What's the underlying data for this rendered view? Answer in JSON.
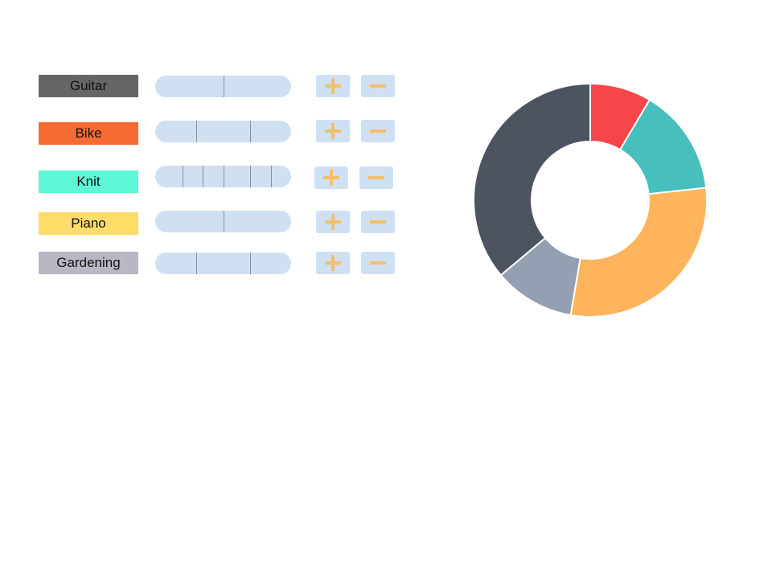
{
  "hobbies": [
    {
      "label": "Guitar",
      "color": "#666666",
      "ticks": [
        0.5
      ],
      "plus_icon": "plus-icon",
      "minus_icon": "minus-icon"
    },
    {
      "label": "Bike",
      "color": "#f66b31",
      "ticks": [
        0.3,
        0.7
      ],
      "plus_icon": "plus-icon",
      "minus_icon": "minus-icon"
    },
    {
      "label": "Knit",
      "color": "#5ef7d6",
      "ticks": [
        0.2,
        0.35,
        0.5,
        0.7,
        0.85
      ],
      "plus_icon": "plus-icon",
      "minus_icon": "minus-icon"
    },
    {
      "label": "Piano",
      "color": "#fedc6a",
      "ticks": [
        0.5
      ],
      "plus_icon": "plus-icon",
      "minus_icon": "minus-icon"
    },
    {
      "label": "Gardening",
      "color": "#b8b7c4",
      "ticks": [
        0.3,
        0.7
      ],
      "plus_icon": "plus-icon",
      "minus_icon": "minus-icon"
    }
  ],
  "colors": {
    "control_bg": "#cfe0f3",
    "icon": "#f4bf67",
    "tick": "#8a8f96"
  },
  "chart_data": {
    "type": "pie",
    "style": "donut",
    "values": [
      8.5,
      14.8,
      29.4,
      11.2,
      36.1
    ],
    "colors": [
      "#f7464a",
      "#46bfbd",
      "#fdb45c",
      "#949fb1",
      "#4d5360"
    ],
    "start_angle": "top",
    "direction": "clockwise"
  }
}
